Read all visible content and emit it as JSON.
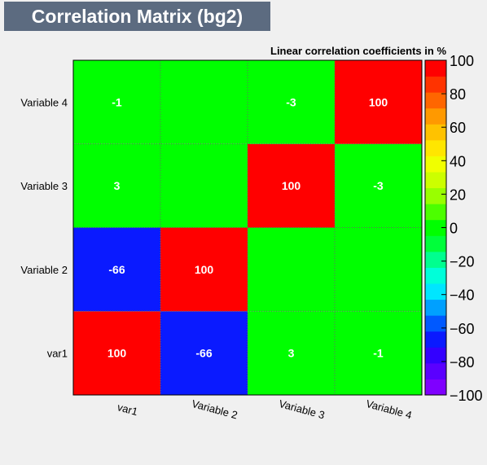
{
  "chart_data": {
    "type": "heatmap",
    "title": "Correlation Matrix (bg2)",
    "subtitle": "Linear correlation coefficients in %",
    "x_categories": [
      "var1",
      "Variable 2",
      "Variable 3",
      "Variable 4"
    ],
    "y_categories": [
      "var1",
      "Variable 2",
      "Variable 3",
      "Variable 4"
    ],
    "values": [
      [
        100,
        -66,
        3,
        -1
      ],
      [
        -66,
        100,
        0,
        0
      ],
      [
        3,
        0,
        100,
        -3
      ],
      [
        -1,
        0,
        -3,
        100
      ]
    ],
    "zlim": [
      -100,
      100
    ],
    "colorbar_ticks": [
      100,
      80,
      60,
      40,
      20,
      0,
      -20,
      -40,
      -60,
      -80,
      -100
    ],
    "colorbar_colors": [
      "#7f00ff",
      "#5a00ff",
      "#3300ff",
      "#0a1aff",
      "#0059ff",
      "#00a0ff",
      "#00e6ff",
      "#00ffd9",
      "#00ff8f",
      "#00ff3a",
      "#00ff00",
      "#4cff00",
      "#99ff00",
      "#ccff00",
      "#f0ff00",
      "#ffe600",
      "#ffc200",
      "#ff9900",
      "#ff6600",
      "#ff3300",
      "#ff0000"
    ]
  }
}
